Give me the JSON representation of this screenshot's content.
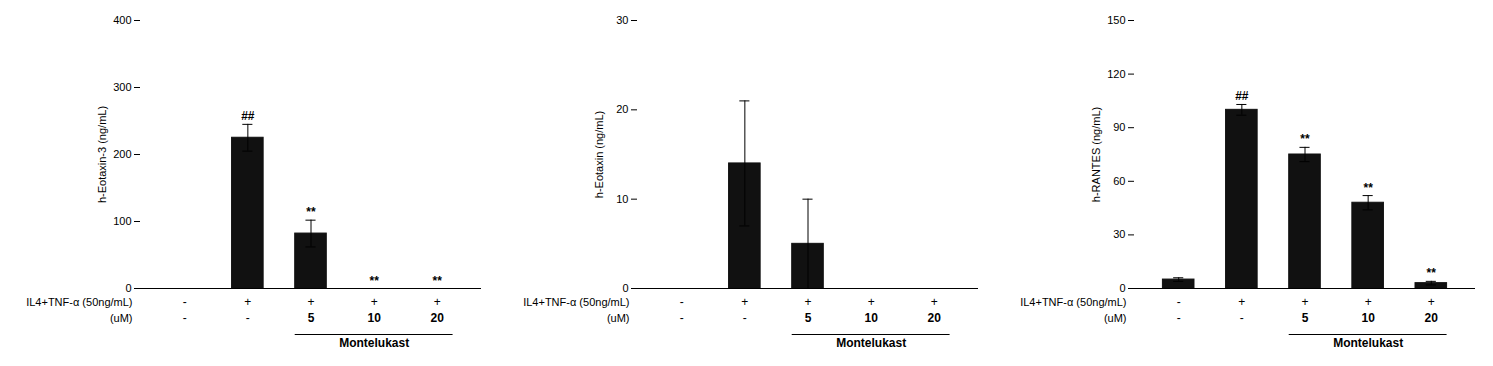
{
  "chart_data": [
    {
      "type": "bar",
      "ylabel": "h-Eotaxin-3 (ng/mL)",
      "categories": [
        null,
        null,
        null,
        null,
        null
      ],
      "values": [
        0,
        225,
        82,
        0,
        0
      ],
      "errors": [
        0,
        20,
        20,
        0,
        0
      ],
      "annotations": [
        null,
        "##",
        "**",
        "**",
        "**"
      ],
      "color": "#111111",
      "ylim": [
        0,
        400
      ],
      "yticks": [
        0,
        100,
        200,
        300,
        400
      ],
      "tick_labels": "y",
      "x_label_rows": [
        {
          "label": "IL4+TNF-α (50ng/mL)",
          "values": [
            "-",
            "+",
            "+",
            "+",
            "+"
          ]
        },
        {
          "label": "(uM)",
          "values": [
            "-",
            "-",
            "5",
            "10",
            "20"
          ]
        }
      ],
      "bracket_label": "Montelukast"
    },
    {
      "type": "bar",
      "ylabel": "h-Eotaxin (ng/mL)",
      "categories": [
        null,
        null,
        null,
        null,
        null
      ],
      "values": [
        0,
        14,
        5,
        0,
        0
      ],
      "errors": [
        0,
        7,
        5,
        0,
        0
      ],
      "color": "#111111",
      "ylim": [
        0,
        30
      ],
      "yticks": [
        0,
        10,
        20,
        30
      ],
      "tick_labels": "y",
      "x_label_rows": [
        {
          "label": "IL4+TNF-α (50ng/mL)",
          "values": [
            "-",
            "+",
            "+",
            "+",
            "+"
          ]
        },
        {
          "label": "(uM)",
          "values": [
            "-",
            "-",
            "5",
            "10",
            "20"
          ]
        }
      ],
      "bracket_label": "Montelukast"
    },
    {
      "type": "bar",
      "ylabel": "h-RANTES (ng/mL)",
      "categories": [
        null,
        null,
        null,
        null,
        null
      ],
      "values": [
        5,
        100,
        75,
        48,
        3
      ],
      "errors": [
        1,
        3,
        4,
        4,
        1
      ],
      "annotations": [
        null,
        "##",
        "**",
        "**",
        "**"
      ],
      "color": "#111111",
      "ylim": [
        0,
        150
      ],
      "yticks": [
        0,
        30,
        60,
        90,
        120,
        150
      ],
      "tick_labels": "y",
      "x_label_rows": [
        {
          "label": "IL4+TNF-α (50ng/mL)",
          "values": [
            "-",
            "+",
            "+",
            "+",
            "+"
          ]
        },
        {
          "label": "(uM)",
          "values": [
            "-",
            "-",
            "5",
            "10",
            "20"
          ]
        }
      ],
      "bracket_label": "Montelukast"
    }
  ]
}
